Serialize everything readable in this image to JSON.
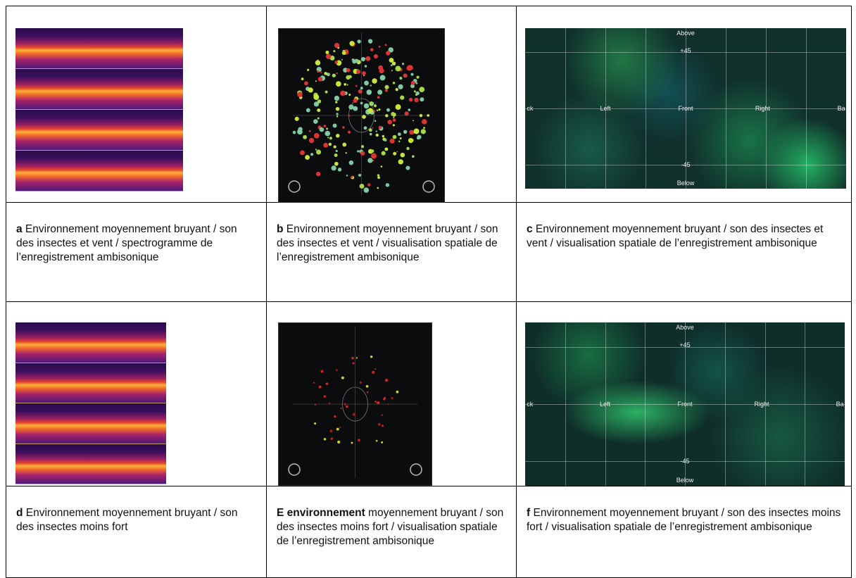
{
  "table": {
    "captions": [
      [
        {
          "label": "a",
          "text": " Environnement moyennement bruyant / son des insectes et vent / spectrogramme de l’enregistrement ambisonique"
        },
        {
          "label": "b",
          "text": " Environnement moyennement bruyant /  son des insectes et vent  / visualisation spatiale de l’enregistrement ambisonique"
        },
        {
          "label": "c",
          "text": " Environnement moyennement bruyant / son des insectes et vent  / visualisation spatiale de l’enregistrement ambisonique"
        }
      ],
      [
        {
          "label": "d",
          "text": " Environnement moyennement bruyant / son des insectes moins fort"
        },
        {
          "label": "E environnement",
          "text": " moyennement bruyant / son des insectes moins fort / visualisation spatiale de l’enregistrement ambisonique"
        },
        {
          "label": "f",
          "text": " Environnement moyennement bruyant / son des insectes moins fort  / visualisation spatiale  de l’enregistrement ambisonique"
        }
      ]
    ],
    "heatmap_labels": [
      [
        "Above",
        "+45",
        "ck",
        "Left",
        "Front",
        "Right",
        "Ba",
        "-45",
        "Below"
      ],
      [
        "Above",
        "+45",
        "ck",
        "Left",
        "Front",
        "Right",
        "Ba",
        "-45",
        "Below"
      ]
    ]
  }
}
